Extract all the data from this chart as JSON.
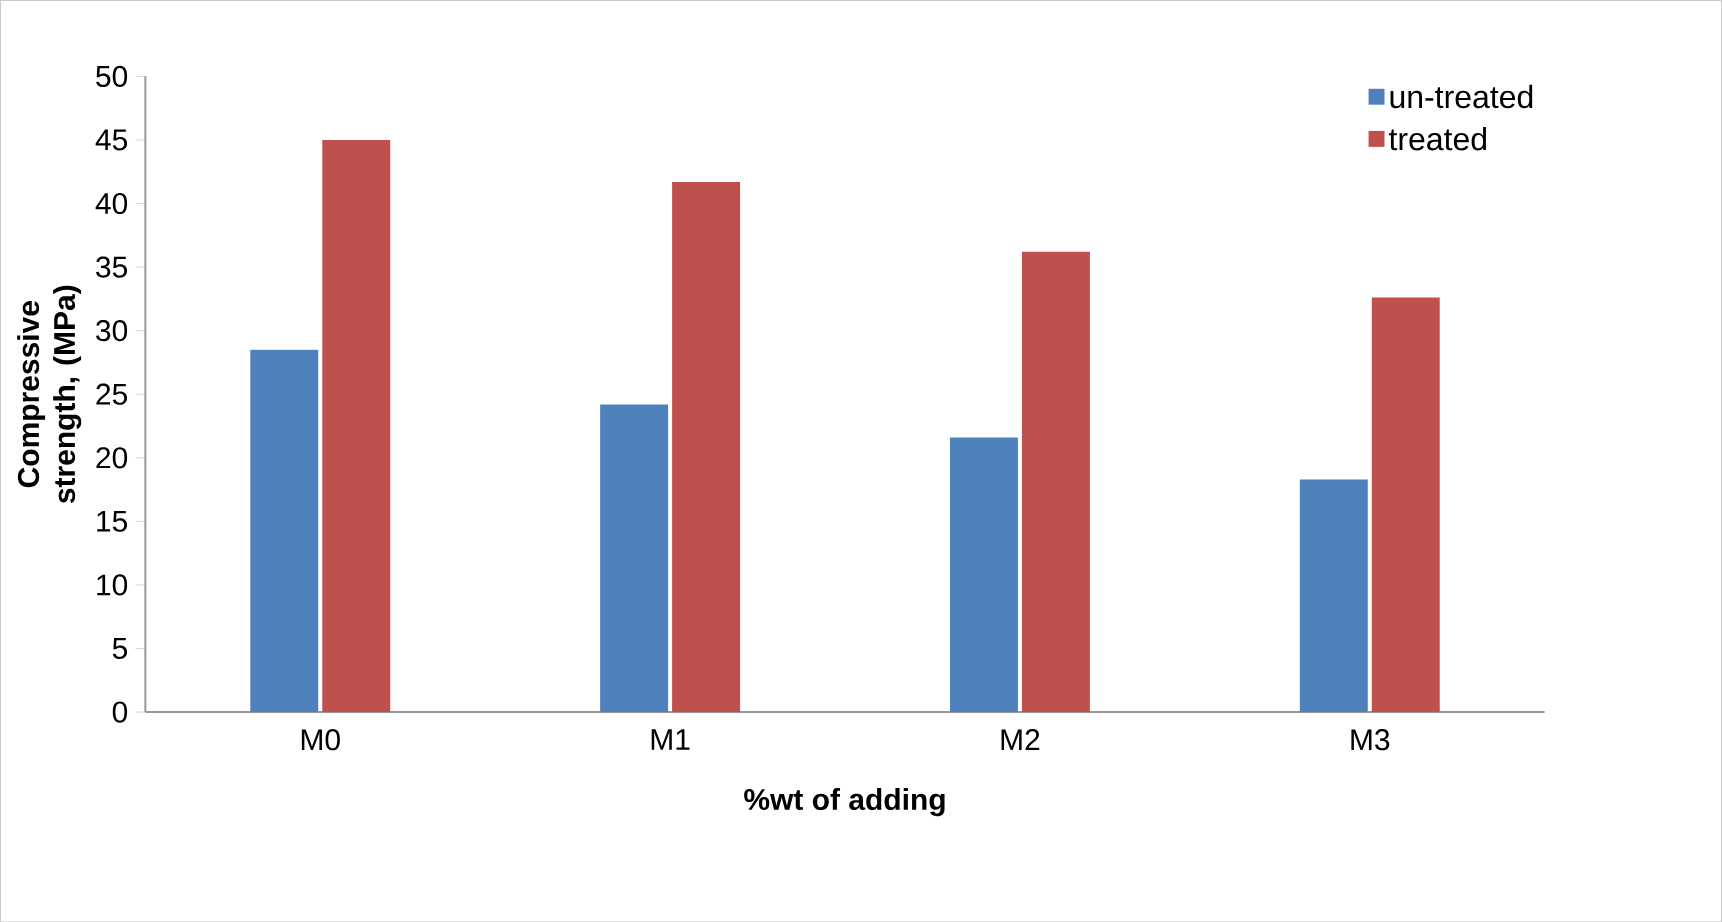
{
  "chart_data": {
    "type": "bar",
    "xlabel": "%wt of adding",
    "ylabel": "Compressive strength, (MPa)",
    "categories": [
      "M0",
      "M1",
      "M2",
      "M3"
    ],
    "series": [
      {
        "name": "un-treated",
        "color": "#4f81bd",
        "values": [
          28.5,
          24.2,
          21.6,
          18.3
        ]
      },
      {
        "name": "treated",
        "color": "#c0504d",
        "values": [
          45.0,
          41.7,
          36.2,
          32.6
        ]
      }
    ],
    "ylim": [
      0,
      50
    ],
    "yticks": [
      0,
      5,
      10,
      15,
      20,
      25,
      30,
      35,
      40,
      45,
      50
    ],
    "grid": false,
    "legend": "top right"
  }
}
